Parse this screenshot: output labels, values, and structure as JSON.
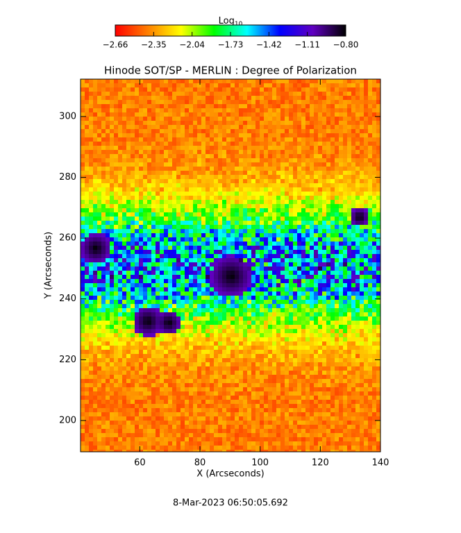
{
  "chart_data": {
    "type": "image",
    "title": "Hinode SOT/SP - MERLIN : Degree of Polarization",
    "x_label": "X (Arcseconds)",
    "y_label": "Y (Arcseconds)",
    "footer": "8-Mar-2023 06:50:05.692",
    "colorbar_label": "Log",
    "colorbar_label_sub": "10",
    "clim": [
      -2.66,
      -0.8
    ],
    "cticks": [
      {
        "value": -2.66,
        "label": "−2.66"
      },
      {
        "value": -2.35,
        "label": "−2.35"
      },
      {
        "value": -2.04,
        "label": "−2.04"
      },
      {
        "value": -1.73,
        "label": "−1.73"
      },
      {
        "value": -1.42,
        "label": "−1.42"
      },
      {
        "value": -1.11,
        "label": "−1.11"
      },
      {
        "value": -0.8,
        "label": "−0.80"
      }
    ],
    "colormap": [
      "#ff0000",
      "#ff8000",
      "#ffff00",
      "#00ff00",
      "#00ffff",
      "#0000ff",
      "#6000c0",
      "#000000"
    ],
    "xlim": [
      40.3,
      140
    ],
    "xticks": [
      60,
      80,
      100,
      120,
      140
    ],
    "ylim": [
      189.7,
      312.3
    ],
    "yticks": [
      200,
      220,
      240,
      260,
      280,
      300
    ]
  }
}
